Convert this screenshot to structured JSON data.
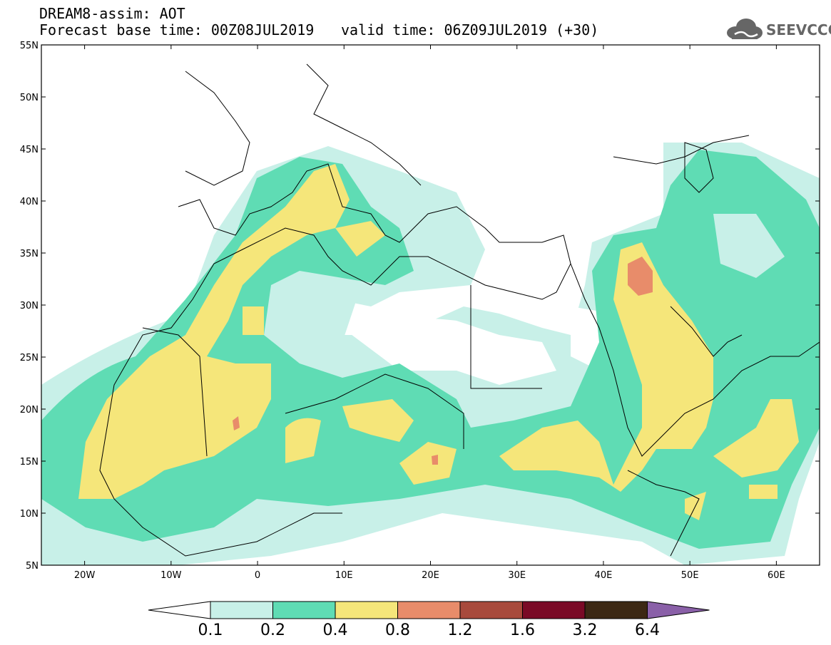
{
  "header": {
    "line1": "DREAM8-assim: AOT",
    "line2": "Forecast base time: 00Z08JUL2019",
    "line2b": "valid time: 06Z09JUL2019 (+30)"
  },
  "logo": {
    "text": "SEEVCCC",
    "icon": "cloud-logo-icon"
  },
  "axes": {
    "lat_labels": [
      "55N",
      "50N",
      "45N",
      "40N",
      "35N",
      "30N",
      "25N",
      "20N",
      "15N",
      "10N",
      "5N"
    ],
    "lon_labels": [
      "20W",
      "10W",
      "0",
      "10E",
      "20E",
      "30E",
      "40E",
      "50E",
      "60E"
    ],
    "lat_range": [
      5,
      55
    ],
    "lon_range": [
      -25,
      65
    ]
  },
  "colorbar": {
    "labels": [
      "0.1",
      "0.2",
      "0.4",
      "0.8",
      "1.2",
      "1.6",
      "3.2",
      "6.4"
    ],
    "colors": [
      "#ffffff",
      "#c8f0e8",
      "#5fdcb4",
      "#f5e67a",
      "#e88c6a",
      "#a84a3c",
      "#7a0a26",
      "#3c2814",
      "#8a60a8"
    ]
  },
  "fields": {
    "c01": "#c8f0e8",
    "c02": "#5fdcb4",
    "c04": "#f5e67a",
    "c08": "#e88c6a",
    "coast": "#000000"
  }
}
